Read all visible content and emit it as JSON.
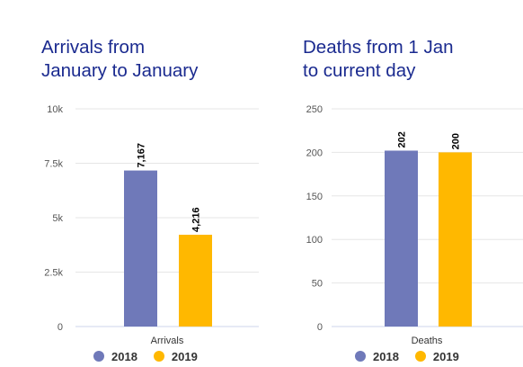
{
  "colors": {
    "y2018": "#6f79b9",
    "y2019": "#ffb800",
    "title": "#1a2a8f"
  },
  "chart_data": [
    {
      "type": "bar",
      "title_lines": [
        "Arrivals from",
        "January to January"
      ],
      "categories": [
        "Arrivals"
      ],
      "series": [
        {
          "name": "2018",
          "values": [
            7167
          ],
          "label": "7,167"
        },
        {
          "name": "2019",
          "values": [
            4216
          ],
          "label": "4,216"
        }
      ],
      "ylim": [
        0,
        10000
      ],
      "yticks": [
        {
          "value": 0,
          "label": "0"
        },
        {
          "value": 2500,
          "label": "2.5k"
        },
        {
          "value": 5000,
          "label": "5k"
        },
        {
          "value": 7500,
          "label": "7.5k"
        },
        {
          "value": 10000,
          "label": "10k"
        }
      ],
      "grid": true,
      "legend": "bottom"
    },
    {
      "type": "bar",
      "title_lines": [
        "Deaths from 1 Jan",
        "to current day"
      ],
      "categories": [
        "Deaths"
      ],
      "series": [
        {
          "name": "2018",
          "values": [
            202
          ],
          "label": "202"
        },
        {
          "name": "2019",
          "values": [
            200
          ],
          "label": "200"
        }
      ],
      "ylim": [
        0,
        250
      ],
      "yticks": [
        {
          "value": 0,
          "label": "0"
        },
        {
          "value": 50,
          "label": "50"
        },
        {
          "value": 100,
          "label": "100"
        },
        {
          "value": 150,
          "label": "150"
        },
        {
          "value": 200,
          "label": "200"
        },
        {
          "value": 250,
          "label": "250"
        }
      ],
      "grid": true,
      "legend": "bottom"
    }
  ]
}
